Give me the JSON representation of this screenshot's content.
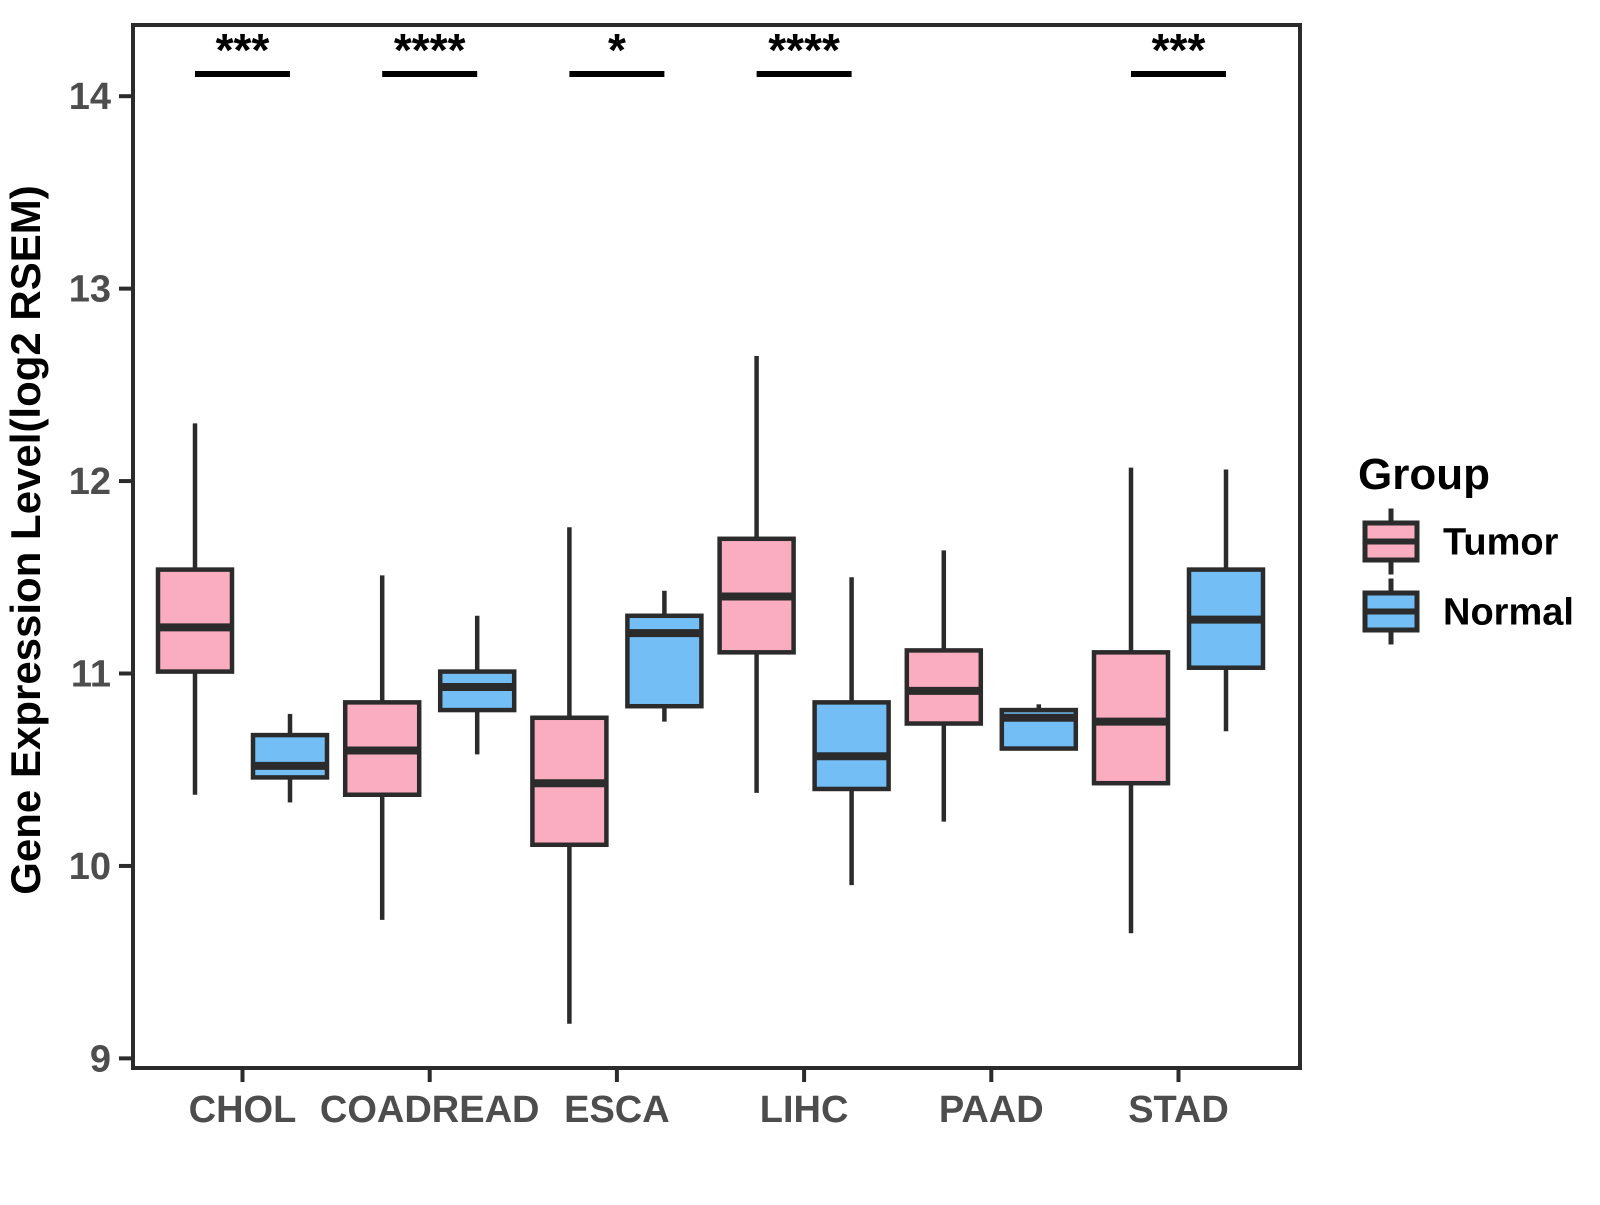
{
  "chart_data": {
    "type": "box",
    "title": "",
    "xlabel": "",
    "ylabel": "Gene Expression Level(log2 RSEM)",
    "ylim": [
      8.95,
      14.37
    ],
    "y_ticks": [
      9,
      10,
      11,
      12,
      13,
      14
    ],
    "grid": "off",
    "categories": [
      "CHOL",
      "COADREAD",
      "ESCA",
      "LIHC",
      "PAAD",
      "STAD"
    ],
    "legend": {
      "title": "Group",
      "position": "right"
    },
    "groups": [
      {
        "name": "Tumor",
        "color": "#FAACC1"
      },
      {
        "name": "Normal",
        "color": "#72BEF5"
      }
    ],
    "significance_by_category": [
      "***",
      "****",
      "*",
      "****",
      "",
      "***"
    ],
    "series": [
      {
        "name": "Tumor",
        "boxes": [
          {
            "category": "CHOL",
            "min": 10.37,
            "q1": 11.01,
            "median": 11.24,
            "q3": 11.54,
            "max": 12.3
          },
          {
            "category": "COADREAD",
            "min": 9.72,
            "q1": 10.37,
            "median": 10.6,
            "q3": 10.85,
            "max": 11.51
          },
          {
            "category": "ESCA",
            "min": 9.18,
            "q1": 10.11,
            "median": 10.43,
            "q3": 10.77,
            "max": 11.76
          },
          {
            "category": "LIHC",
            "min": 10.38,
            "q1": 11.11,
            "median": 11.4,
            "q3": 11.7,
            "max": 12.65
          },
          {
            "category": "PAAD",
            "min": 10.23,
            "q1": 10.74,
            "median": 10.91,
            "q3": 11.12,
            "max": 11.64
          },
          {
            "category": "STAD",
            "min": 9.65,
            "q1": 10.43,
            "median": 10.75,
            "q3": 11.11,
            "max": 12.07
          }
        ]
      },
      {
        "name": "Normal",
        "boxes": [
          {
            "category": "CHOL",
            "min": 10.33,
            "q1": 10.46,
            "median": 10.52,
            "q3": 10.68,
            "max": 10.79
          },
          {
            "category": "COADREAD",
            "min": 10.58,
            "q1": 10.81,
            "median": 10.93,
            "q3": 11.01,
            "max": 11.3
          },
          {
            "category": "ESCA",
            "min": 10.75,
            "q1": 10.83,
            "median": 11.21,
            "q3": 11.3,
            "max": 11.43
          },
          {
            "category": "LIHC",
            "min": 9.9,
            "q1": 10.4,
            "median": 10.57,
            "q3": 10.85,
            "max": 11.5
          },
          {
            "category": "PAAD",
            "min": 10.61,
            "q1": 10.61,
            "median": 10.77,
            "q3": 10.81,
            "max": 10.84
          },
          {
            "category": "STAD",
            "min": 10.7,
            "q1": 11.03,
            "median": 11.28,
            "q3": 11.54,
            "max": 12.06
          }
        ]
      }
    ],
    "colors": {
      "stroke": "#2b2b2b",
      "tick_label": "#4d4d4d",
      "axis_title": "#000000",
      "significance": "#000000",
      "background": "#ffffff"
    }
  }
}
